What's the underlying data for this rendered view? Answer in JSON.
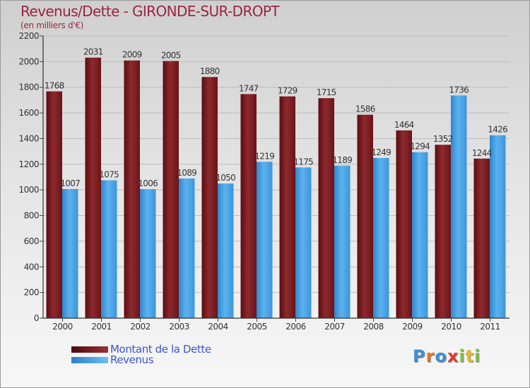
{
  "title": "Revenus/Dette - GIRONDE-SUR-DROPT",
  "subtitle": "(en milliers d'€)",
  "colors": {
    "debt": "#7a1a1e",
    "revenue": "#4aa3e4",
    "title": "#9b2440",
    "legend_text": "#3c56c8"
  },
  "chart_data": {
    "type": "bar",
    "categories": [
      "2000",
      "2001",
      "2002",
      "2003",
      "2004",
      "2005",
      "2006",
      "2007",
      "2008",
      "2009",
      "2010",
      "2011"
    ],
    "series": [
      {
        "name": "Montant de la Dette",
        "values": [
          1768,
          2031,
          2009,
          2005,
          1880,
          1747,
          1729,
          1715,
          1586,
          1464,
          1352,
          1244
        ]
      },
      {
        "name": "Revenus",
        "values": [
          1007,
          1075,
          1006,
          1089,
          1050,
          1219,
          1175,
          1189,
          1249,
          1294,
          1736,
          1426
        ]
      }
    ],
    "ylim": [
      0,
      2200
    ],
    "yticks": [
      0,
      200,
      400,
      600,
      800,
      1000,
      1200,
      1400,
      1600,
      1800,
      2000,
      2200
    ],
    "grid": true,
    "legend_position": "bottom-left"
  },
  "logo": {
    "text": "Proxiti",
    "letters": [
      "P",
      "r",
      "o",
      "x",
      "i",
      "t",
      "i"
    ],
    "letter_colors": [
      "#3f8fd6",
      "#e0772a",
      "#3f8fd6",
      "#e23a2e",
      "#7cc04a",
      "#e6b82c",
      "#7cc04a"
    ]
  }
}
